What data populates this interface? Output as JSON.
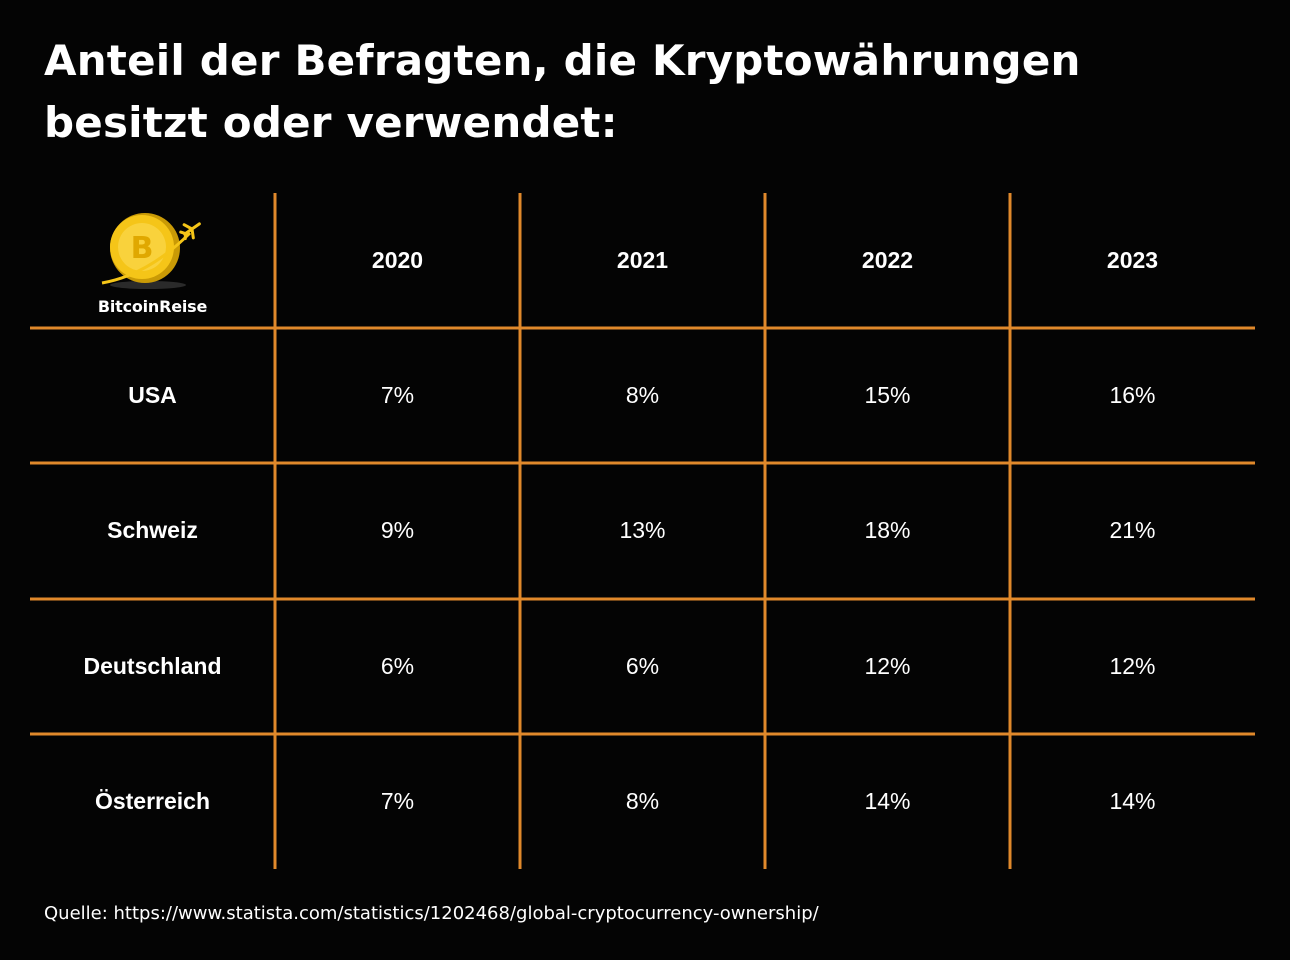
{
  "title": "Anteil der Befragten, die Kryptowährungen besitzt oder verwendet:",
  "logo": {
    "text": "BitcoinReise",
    "icon": "bitcoin-coin-airplane-icon",
    "coin_letter": "B"
  },
  "colors": {
    "grid": "#E0892B",
    "background": "#040404",
    "text": "#FFFFFF",
    "coin": "#F5C518"
  },
  "chart_data": {
    "type": "table",
    "title": "Anteil der Befragten, die Kryptowährungen besitzt oder verwendet:",
    "columns": [
      "2020",
      "2021",
      "2022",
      "2023"
    ],
    "rows": [
      {
        "label": "USA",
        "values": [
          "7%",
          "8%",
          "15%",
          "16%"
        ]
      },
      {
        "label": "Schweiz",
        "values": [
          "9%",
          "13%",
          "18%",
          "21%"
        ]
      },
      {
        "label": "Deutschland",
        "values": [
          "6%",
          "6%",
          "12%",
          "12%"
        ]
      },
      {
        "label": "Österreich",
        "values": [
          "7%",
          "8%",
          "14%",
          "14%"
        ]
      }
    ]
  },
  "source": "Quelle: https://www.statista.com/statistics/1202468/global-cryptocurrency-ownership/"
}
